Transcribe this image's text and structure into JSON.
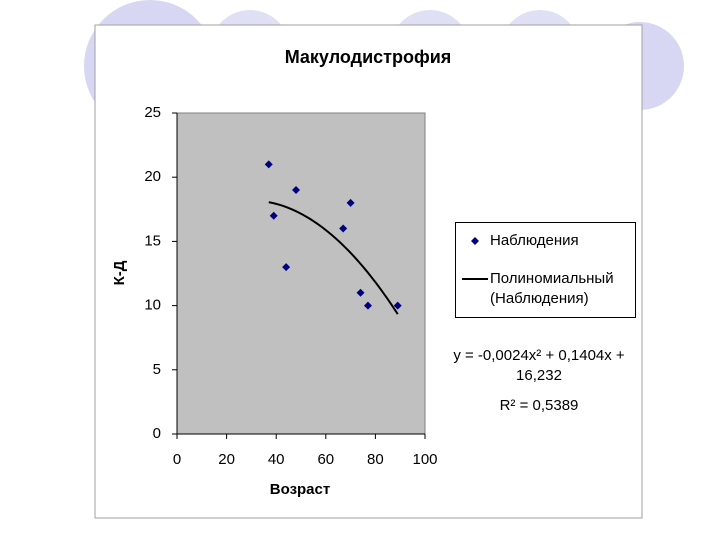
{
  "chart_data": {
    "type": "scatter",
    "title": "Макулодистрофия",
    "x_label": "Возраст",
    "y_label": "К-Д",
    "series": [
      {
        "name": "Наблюдения",
        "color": "#000080",
        "x": [
          37,
          39,
          44,
          48,
          67,
          70,
          74,
          77,
          89
        ],
        "values": [
          21,
          17,
          13,
          19,
          16,
          18,
          11,
          10,
          10
        ]
      }
    ],
    "trendline": {
      "name": "Полиномиальный (Наблюдения)",
      "color": "#000000"
    },
    "annotations": [
      "y = -0,0024x² + 0,1404x + 16,232",
      "R² = 0,5389"
    ],
    "xlim": [
      0,
      100
    ],
    "xticks": [
      0,
      20,
      40,
      60,
      80,
      100
    ],
    "ylim": [
      0,
      25
    ],
    "yticks": [
      0,
      5,
      10,
      15,
      20,
      25
    ],
    "grid": false,
    "plot_background": "#c0c0c0"
  }
}
